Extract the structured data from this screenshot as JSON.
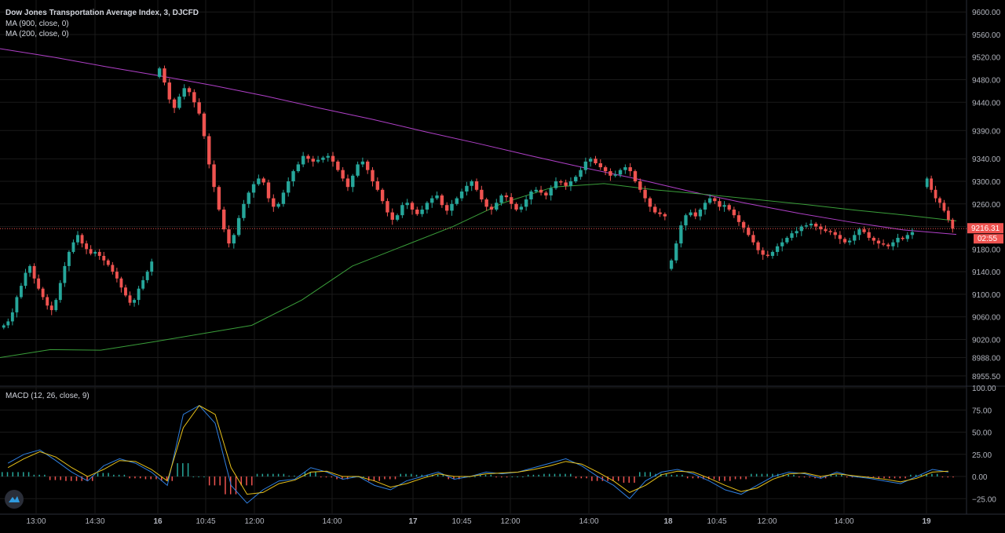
{
  "legend": {
    "title": "Dow Jones Transportation Average Index, 3, DJCFD",
    "ma900": "MA (900, close, 0)",
    "ma200": "MA (200, close, 0)",
    "macd": "MACD (12, 26, close, 9)"
  },
  "price_badge": {
    "value": "9216.31",
    "countdown": "02:55"
  },
  "colors": {
    "background": "#000000",
    "grid": "#1a1a1a",
    "up": "#26a69a",
    "down": "#ef5350",
    "ma900": "#b040c8",
    "ma200": "#3a9e3a",
    "macd_line": "#2f7fe0",
    "signal_line": "#e8c21a",
    "badge": "#ef5350"
  },
  "chart_data": [
    {
      "type": "candlestick",
      "title": "Dow Jones Transportation Average Index, 3, DJCFD",
      "ylim": [
        8940,
        9610
      ],
      "y_ticks": [
        "9600.00",
        "9560.00",
        "9520.00",
        "9480.00",
        "9440.00",
        "9390.00",
        "9340.00",
        "9300.00",
        "9260.00",
        "9220.00",
        "9180.00",
        "9140.00",
        "9100.00",
        "9060.00",
        "9020.00",
        "8988.00",
        "8955.50"
      ],
      "x_ticks": [
        "13:00",
        "14:30",
        "16",
        "10:45",
        "12:00",
        "14:00",
        "17",
        "10:45",
        "12:00",
        "14:00",
        "18",
        "10:45",
        "12:00",
        "14:00",
        "19"
      ],
      "sessions": [
        {
          "start_label": "13:00",
          "closes": [
            9045,
            9052,
            9068,
            9095,
            9115,
            9138,
            9150,
            9128,
            9110,
            9095,
            9080,
            9072,
            9090,
            9120,
            9150,
            9175,
            9192,
            9205,
            9190,
            9180,
            9172,
            9175,
            9168,
            9160,
            9152,
            9140,
            9128,
            9112,
            9098,
            9085,
            9090,
            9110,
            9125,
            9140,
            9158
          ]
        },
        {
          "start_label": "16",
          "closes": [
            9500,
            9475,
            9445,
            9430,
            9450,
            9465,
            9458,
            9440,
            9420,
            9380,
            9330,
            9290,
            9250,
            9215,
            9190,
            9205,
            9235,
            9260,
            9280,
            9295,
            9305,
            9298,
            9270,
            9255,
            9260,
            9280,
            9300,
            9318,
            9330,
            9345,
            9340,
            9335,
            9338,
            9342,
            9345,
            9335,
            9320,
            9305,
            9290,
            9310,
            9330,
            9335,
            9320,
            9300,
            9285,
            9265,
            9245,
            9232,
            9240,
            9258,
            9262,
            9250,
            9242,
            9250,
            9262,
            9270,
            9275,
            9258,
            9248,
            9260,
            9270,
            9282,
            9292,
            9300,
            9285,
            9268,
            9255,
            9250,
            9262,
            9275,
            9272,
            9260,
            9250,
            9255,
            9268,
            9282,
            9285,
            9280,
            9275,
            9288,
            9300,
            9298,
            9292,
            9300,
            9308,
            9320,
            9335,
            9340,
            9332,
            9325,
            9318,
            9310,
            9312,
            9320,
            9325,
            9318,
            9300,
            9285,
            9270,
            9255,
            9245,
            9242,
            9238
          ]
        },
        {
          "start_label": "18",
          "closes": [
            9160,
            9190,
            9222,
            9240,
            9245,
            9238,
            9250,
            9262,
            9270,
            9265,
            9255,
            9258,
            9250,
            9240,
            9228,
            9218,
            9205,
            9192,
            9178,
            9170,
            9168,
            9175,
            9185,
            9192,
            9200,
            9208,
            9212,
            9220,
            9222,
            9225,
            9220,
            9215,
            9212,
            9210,
            9205,
            9198,
            9192,
            9195,
            9205,
            9215,
            9210,
            9200,
            9195,
            9190,
            9188,
            9185,
            9192,
            9200,
            9198,
            9205,
            9210
          ]
        },
        {
          "start_label": "19",
          "closes": [
            9305,
            9285,
            9270,
            9262,
            9248,
            9232,
            9216.31
          ]
        }
      ],
      "moving_averages": [
        {
          "name": "MA (900, close, 0)",
          "values": [
            9535,
            9520,
            9503,
            9487,
            9470,
            9451,
            9430,
            9410,
            9388,
            9367,
            9345,
            9324,
            9304,
            9282,
            9262,
            9244,
            9228,
            9214,
            9206
          ]
        },
        {
          "name": "MA (200, close, 0)",
          "values": [
            8988,
            9002,
            9001,
            9015,
            9030,
            9045,
            9090,
            9150,
            9185,
            9220,
            9262,
            9290,
            9296,
            9285,
            9277,
            9268,
            9259,
            9249,
            9240,
            9230
          ]
        }
      ],
      "last_price": 9216.31
    },
    {
      "type": "line",
      "title": "MACD (12, 26, close, 9)",
      "ylim": [
        -38,
        100
      ],
      "y_ticks": [
        "100.00",
        "75.00",
        "50.00",
        "25.00",
        "0.00",
        "−25.00"
      ],
      "series": [
        {
          "name": "MACD",
          "values": [
            15,
            25,
            30,
            18,
            5,
            -5,
            12,
            20,
            15,
            5,
            -10,
            70,
            80,
            60,
            -10,
            -30,
            -15,
            -5,
            -3,
            10,
            5,
            -3,
            0,
            -10,
            -15,
            -5,
            0,
            5,
            -3,
            0,
            5,
            3,
            5,
            10,
            15,
            20,
            12,
            0,
            -10,
            -25,
            -5,
            5,
            8,
            3,
            -5,
            -15,
            -20,
            -10,
            0,
            5,
            3,
            -2,
            5,
            0,
            -2,
            -5,
            -8,
            0,
            8,
            5
          ]
        },
        {
          "name": "Signal",
          "values": [
            10,
            20,
            28,
            22,
            10,
            0,
            8,
            18,
            17,
            8,
            -5,
            55,
            80,
            70,
            10,
            -20,
            -18,
            -8,
            -4,
            5,
            6,
            0,
            0,
            -5,
            -12,
            -8,
            -2,
            3,
            0,
            0,
            3,
            4,
            5,
            8,
            12,
            17,
            14,
            5,
            -5,
            -18,
            -10,
            2,
            6,
            5,
            -2,
            -10,
            -17,
            -13,
            -3,
            3,
            4,
            0,
            3,
            1,
            -1,
            -3,
            -6,
            -2,
            5,
            6
          ]
        }
      ]
    }
  ]
}
